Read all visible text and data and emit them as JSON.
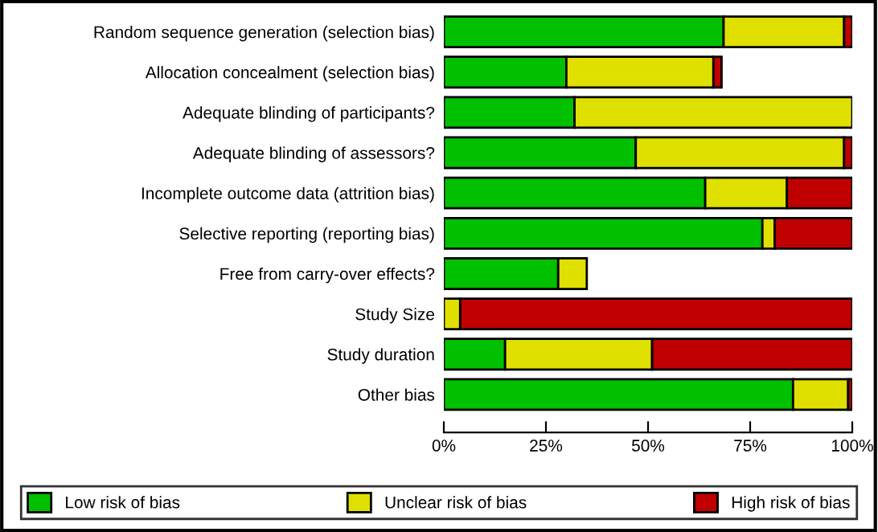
{
  "chart_data": {
    "type": "bar",
    "orientation": "horizontal",
    "stacked": true,
    "categories": [
      "Random sequence generation (selection bias)",
      "Allocation concealment (selection bias)",
      "Adequate blinding of participants?",
      "Adequate blinding of assessors?",
      "Incomplete outcome data (attrition bias)",
      "Selective reporting (reporting bias)",
      "Free from carry-over effects?",
      "Study Size",
      "Study duration",
      "Other bias"
    ],
    "series": [
      {
        "name": "Low risk of bias",
        "color": "#00c000",
        "values": [
          68.5,
          30,
          32,
          47,
          64,
          78,
          28,
          0,
          15,
          85.5
        ]
      },
      {
        "name": "Unclear risk of bias",
        "color": "#e0e000",
        "values": [
          29.5,
          36,
          68,
          51,
          20,
          3,
          7,
          4,
          36,
          13.5
        ]
      },
      {
        "name": "High risk of bias",
        "color": "#c00000",
        "values": [
          2,
          2,
          0,
          2,
          16,
          19,
          0,
          96,
          49,
          1
        ]
      }
    ],
    "xlim": [
      0,
      100
    ],
    "xticks": [
      {
        "value": 0,
        "label": "0%"
      },
      {
        "value": 25,
        "label": "25%"
      },
      {
        "value": 50,
        "label": "50%"
      },
      {
        "value": 75,
        "label": "75%"
      },
      {
        "value": 100,
        "label": "100%"
      }
    ],
    "grid": false,
    "legend": "bottom"
  }
}
